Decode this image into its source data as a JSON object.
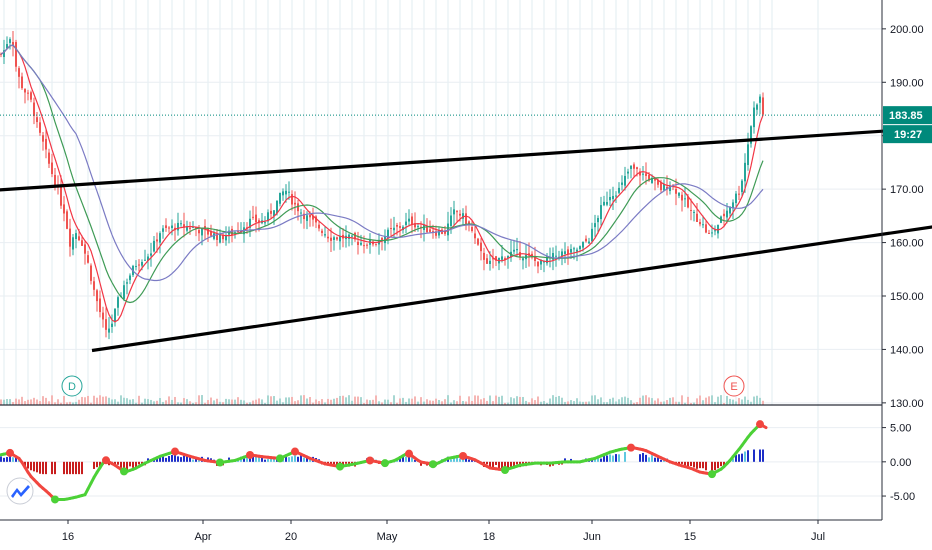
{
  "chart_data": {
    "type": "candlestick",
    "price_axis": {
      "ticks": [
        "200.00",
        "190.00",
        "180.00",
        "170.00",
        "160.00",
        "150.00",
        "140.00",
        "130.00"
      ],
      "tick_values": [
        200,
        190,
        180,
        170,
        160,
        150,
        140,
        130
      ],
      "range": [
        129.6,
        205.4
      ]
    },
    "oscillator_axis": {
      "ticks": [
        "5.00",
        "0.00",
        "-5.00"
      ],
      "tick_values": [
        5,
        0,
        -5
      ],
      "range": [
        -8.5,
        8.3
      ]
    },
    "x_axis": {
      "ticks": [
        "16",
        "Apr",
        "20",
        "May",
        "18",
        "Jun",
        "15",
        "Jul"
      ]
    },
    "last_price": {
      "value": 183.85,
      "label": "183.85",
      "countdown": "19:27"
    },
    "markers": [
      {
        "label": "D"
      },
      {
        "label": "E"
      }
    ],
    "trendlines": [
      {
        "from": [
          -5,
          169.8
        ],
        "to": [
          935,
          181.5
        ]
      },
      {
        "from": [
          92,
          139.8
        ],
        "to": [
          935,
          163.0
        ]
      }
    ],
    "anchors": [
      [
        0,
        195
      ],
      [
        4,
        196
      ],
      [
        8,
        198
      ],
      [
        12,
        199
      ],
      [
        16,
        193
      ],
      [
        20,
        190
      ],
      [
        26,
        188
      ],
      [
        32,
        186
      ],
      [
        38,
        181
      ],
      [
        44,
        178
      ],
      [
        50,
        174
      ],
      [
        56,
        171
      ],
      [
        60,
        168
      ],
      [
        64,
        166
      ],
      [
        70,
        160
      ],
      [
        76,
        162
      ],
      [
        82,
        160
      ],
      [
        88,
        156
      ],
      [
        94,
        151
      ],
      [
        100,
        147
      ],
      [
        106,
        143
      ],
      [
        112,
        145
      ],
      [
        118,
        149
      ],
      [
        124,
        152
      ],
      [
        130,
        154
      ],
      [
        136,
        156
      ],
      [
        142,
        157
      ],
      [
        150,
        158
      ],
      [
        160,
        162
      ],
      [
        175,
        163
      ],
      [
        190,
        163
      ],
      [
        205,
        162
      ],
      [
        220,
        161
      ],
      [
        235,
        162
      ],
      [
        250,
        164
      ],
      [
        265,
        164
      ],
      [
        275,
        167
      ],
      [
        285,
        170
      ],
      [
        295,
        167
      ],
      [
        305,
        165
      ],
      [
        318,
        163
      ],
      [
        330,
        161
      ],
      [
        345,
        161
      ],
      [
        360,
        160
      ],
      [
        375,
        160
      ],
      [
        390,
        162
      ],
      [
        400,
        163
      ],
      [
        410,
        164
      ],
      [
        420,
        163
      ],
      [
        435,
        162
      ],
      [
        445,
        162
      ],
      [
        455,
        166
      ],
      [
        462,
        165
      ],
      [
        470,
        163
      ],
      [
        480,
        158
      ],
      [
        490,
        156
      ],
      [
        500,
        157
      ],
      [
        510,
        158
      ],
      [
        520,
        158
      ],
      [
        530,
        157
      ],
      [
        540,
        156
      ],
      [
        550,
        157
      ],
      [
        560,
        158
      ],
      [
        570,
        158
      ],
      [
        580,
        159
      ],
      [
        590,
        161
      ],
      [
        600,
        166
      ],
      [
        610,
        169
      ],
      [
        620,
        170
      ],
      [
        630,
        174
      ],
      [
        640,
        173
      ],
      [
        650,
        172
      ],
      [
        660,
        170
      ],
      [
        670,
        171
      ],
      [
        680,
        169
      ],
      [
        690,
        166
      ],
      [
        700,
        164
      ],
      [
        710,
        161
      ],
      [
        720,
        164
      ],
      [
        730,
        167
      ],
      [
        740,
        170
      ],
      [
        745,
        175
      ],
      [
        750,
        181
      ],
      [
        755,
        186
      ],
      [
        760,
        187
      ],
      [
        763,
        184
      ]
    ],
    "osc_anchors": [
      [
        0,
        1.0
      ],
      [
        10,
        1.3
      ],
      [
        20,
        0.4
      ],
      [
        30,
        -2.0
      ],
      [
        40,
        -3.5
      ],
      [
        48,
        -4.5
      ],
      [
        55,
        -5.5
      ],
      [
        65,
        -5.5
      ],
      [
        75,
        -5.2
      ],
      [
        85,
        -4.8
      ],
      [
        95,
        -2.0
      ],
      [
        105,
        0.3
      ],
      [
        115,
        -0.5
      ],
      [
        125,
        -1.5
      ],
      [
        135,
        -1.0
      ],
      [
        145,
        -0.2
      ],
      [
        160,
        0.8
      ],
      [
        175,
        1.5
      ],
      [
        190,
        0.8
      ],
      [
        205,
        0.2
      ],
      [
        220,
        -0.1
      ],
      [
        235,
        0.2
      ],
      [
        250,
        1.0
      ],
      [
        265,
        0.7
      ],
      [
        280,
        0.5
      ],
      [
        295,
        1.5
      ],
      [
        310,
        0.5
      ],
      [
        325,
        -0.3
      ],
      [
        340,
        -0.7
      ],
      [
        355,
        -0.3
      ],
      [
        370,
        0.2
      ],
      [
        385,
        -0.2
      ],
      [
        395,
        0.2
      ],
      [
        408,
        1.3
      ],
      [
        420,
        0.0
      ],
      [
        435,
        -0.4
      ],
      [
        448,
        0.5
      ],
      [
        462,
        0.9
      ],
      [
        475,
        0.3
      ],
      [
        490,
        -0.9
      ],
      [
        505,
        -1.2
      ],
      [
        520,
        -0.5
      ],
      [
        535,
        -0.2
      ],
      [
        550,
        -0.2
      ],
      [
        565,
        0.0
      ],
      [
        580,
        0.0
      ],
      [
        595,
        0.5
      ],
      [
        610,
        1.4
      ],
      [
        620,
        1.8
      ],
      [
        632,
        2.1
      ],
      [
        645,
        1.7
      ],
      [
        658,
        0.8
      ],
      [
        670,
        0.0
      ],
      [
        680,
        -0.5
      ],
      [
        690,
        -0.9
      ],
      [
        700,
        -1.5
      ],
      [
        712,
        -1.8
      ],
      [
        722,
        -1.0
      ],
      [
        730,
        0.2
      ],
      [
        740,
        2.0
      ],
      [
        750,
        4.0
      ],
      [
        760,
        5.5
      ],
      [
        766,
        5.0
      ]
    ],
    "colors": {
      "up": "#26a69a",
      "down": "#ef5350",
      "ma_red": "#f23645",
      "ma_green": "#3f9b56",
      "ma_purple": "#7b7bc4",
      "last_price": "#00897b",
      "trendline": "#000000",
      "osc_up": "#4cd137",
      "osc_down": "#f1463f",
      "hist_up": "#1e2fc8",
      "hist_down": "#c81e1e",
      "hist_cyan": "#5ec8e0"
    }
  }
}
